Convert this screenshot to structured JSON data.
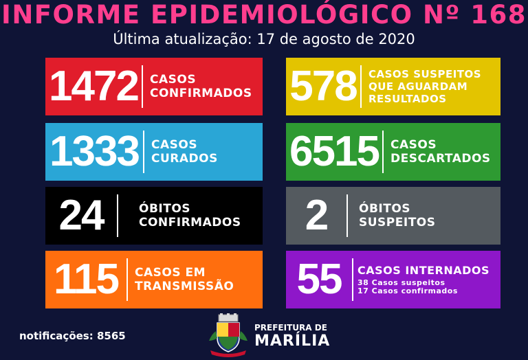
{
  "header": {
    "title": "INFORME EPIDEMIOLÓGICO Nº 168",
    "subtitle": "Última atualização: 17 de agosto de 2020"
  },
  "cards": {
    "confirmados": {
      "value": "1472",
      "l1": "CASOS",
      "l2": "CONFIRMADOS",
      "color": "#e11d2b"
    },
    "suspeitos": {
      "value": "578",
      "l1": "CASOS SUSPEITOS",
      "l2": "QUE AGUARDAM",
      "l3": "RESULTADOS",
      "color": "#e3c400"
    },
    "curados": {
      "value": "1333",
      "l1": "CASOS",
      "l2": "CURADOS",
      "color": "#2aa6d6"
    },
    "descartados": {
      "value": "6515",
      "l1": "CASOS",
      "l2": "DESCARTADOS",
      "color": "#2e9a32"
    },
    "obitos": {
      "value": "24",
      "l1": "ÓBITOS",
      "l2": "CONFIRMADOS",
      "color": "#000000"
    },
    "obitos_suspeitos": {
      "value": "2",
      "l1": "ÓBITOS",
      "l2": "SUSPEITOS",
      "color": "#545a5f"
    },
    "transmissao": {
      "value": "115",
      "l1": "CASOS EM",
      "l2": "TRANSMISSÃO",
      "color": "#ff6e0e"
    },
    "internados": {
      "value": "55",
      "l1": "CASOS INTERNADOS",
      "s1": "38 Casos suspeitos",
      "s2": "17 Casos confirmados",
      "color": "#8e17c9"
    }
  },
  "footer": {
    "notificacoes": "notificações: 8565",
    "prefeitura": "PREFEITURA DE",
    "cidade": "MARÍLIA",
    "crest_icon": "city-coat-of-arms-icon"
  }
}
